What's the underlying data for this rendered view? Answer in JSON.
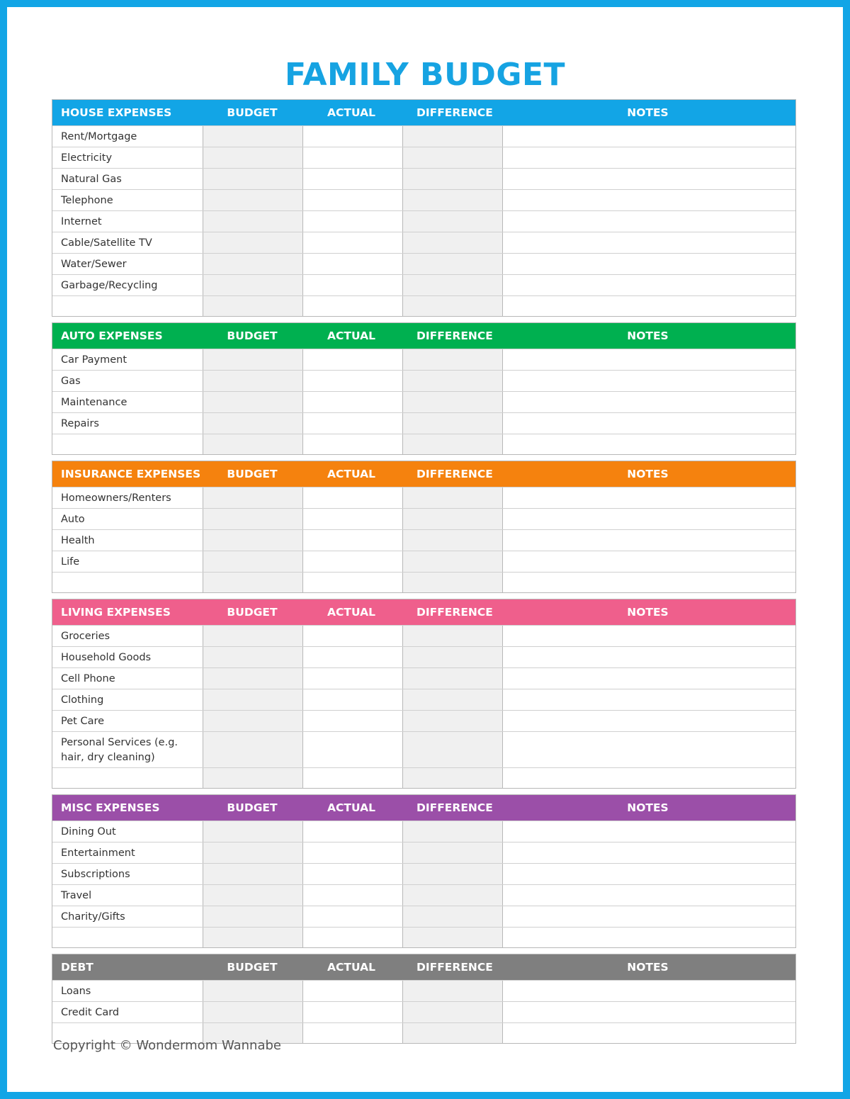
{
  "header": {
    "title": "FAMILY BUDGET"
  },
  "columns": [
    "BUDGET",
    "ACTUAL",
    "DIFFERENCE",
    "NOTES"
  ],
  "sections": [
    {
      "name": "HOUSE EXPENSES",
      "rows": [
        "Rent/Mortgage",
        "Electricity",
        "Natural Gas",
        "Telephone",
        "Internet",
        "Cable/Satellite TV",
        "Water/Sewer",
        "Garbage/Recycling"
      ]
    },
    {
      "name": "AUTO EXPENSES",
      "rows": [
        "Car Payment",
        "Gas",
        "Maintenance",
        "Repairs"
      ]
    },
    {
      "name": "INSURANCE EXPENSES",
      "rows": [
        "Homeowners/Renters",
        "Auto",
        "Health",
        "Life"
      ]
    },
    {
      "name": "LIVING EXPENSES",
      "rows": [
        "Groceries",
        "Household Goods",
        "Cell Phone",
        "Clothing",
        "Pet Care",
        "Personal Services (e.g. hair, dry cleaning)"
      ]
    },
    {
      "name": "MISC EXPENSES",
      "rows": [
        "Dining Out",
        "Entertainment",
        "Subscriptions",
        "Travel",
        "Charity/Gifts"
      ]
    },
    {
      "name": "DEBT",
      "rows": [
        "Loans",
        "Credit Card"
      ]
    }
  ],
  "footer": {
    "copyright": "Copyright © Wondermom Wannabe"
  }
}
